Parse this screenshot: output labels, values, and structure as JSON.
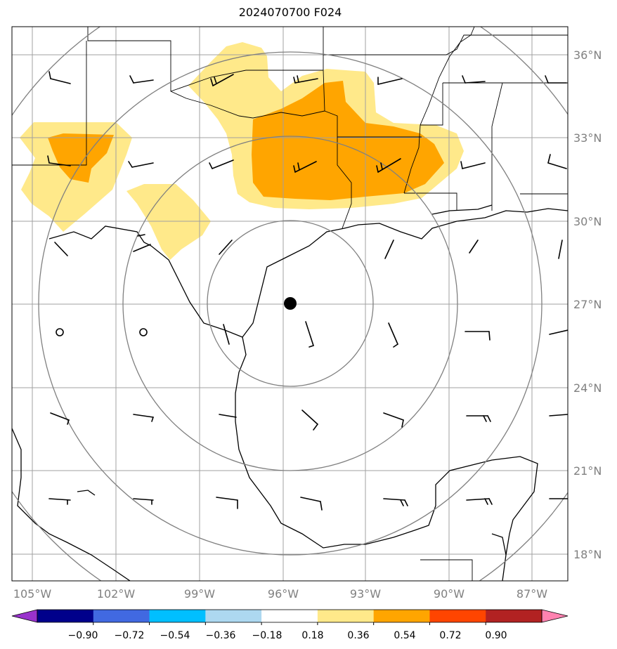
{
  "title": "2024070700 F024",
  "lat_labels": [
    "36°N",
    "33°N",
    "30°N",
    "27°N",
    "24°N",
    "21°N",
    "18°N"
  ],
  "lon_labels": [
    "105°W",
    "102°W",
    "99°W",
    "96°W",
    "93°W",
    "90°W",
    "87°W"
  ],
  "colorbar": {
    "colors": [
      "#9932cc",
      "#00008b",
      "#4169e1",
      "#00bfff",
      "#add8f0",
      "#ffffff",
      "#ffe98a",
      "#ffa500",
      "#ff4500",
      "#b22222",
      "#ff82b0"
    ],
    "tick_labels": [
      "−0.90",
      "−0.72",
      "−0.54",
      "−0.36",
      "−0.18",
      "0.18",
      "0.36",
      "0.54",
      "0.72",
      "0.90"
    ]
  },
  "colors": {
    "fill_light": "#ffe98a",
    "fill_dark": "#ffa500",
    "grid": "#a0a0a0",
    "range_rings": "#808080",
    "center_marker": "#000000"
  }
}
